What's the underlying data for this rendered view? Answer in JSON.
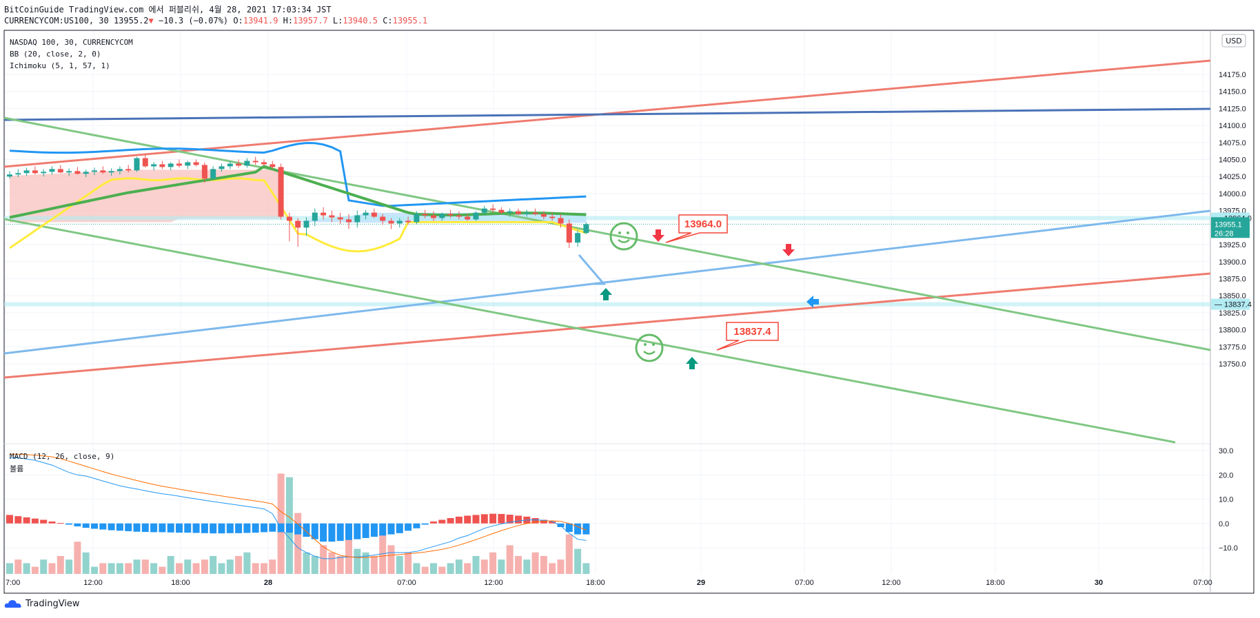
{
  "header": {
    "line1": "BitCoinGuide TradingView.com 에서 퍼블리쉬, 4월 28, 2021 17:03:34 JST",
    "symbol_line": "CURRENCYCOM:US100, 30",
    "last": "13955.2",
    "change_arrow": "▼",
    "change": "−10.3 (−0.07%)",
    "o_label": "O:",
    "o": "13941.9",
    "h_label": "H:",
    "h": "13957.7",
    "l_label": "L:",
    "l": "13940.5",
    "c_label": "C:",
    "c": "13955.1"
  },
  "legend": {
    "symbol": "NASDAQ 100, 30, CURRENCYCOM",
    "bb": "BB (20, close, 2, 0)",
    "ichimoku": "Ichimoku (5, 1, 57, 1)",
    "macd": "MACD (12, 26, close, 9)",
    "volume": "볼륨"
  },
  "currency_badge": "USD",
  "price_tag": {
    "value": "13955.1",
    "countdown": "26:28"
  },
  "footer": {
    "brand": "TradingView"
  },
  "colors": {
    "up": "#26a69a",
    "down": "#ef5350",
    "bb": "#2196f3",
    "tenkan": "#ffeb3b",
    "kijun": "#4caf50",
    "red_line": "#ef7b6f",
    "blue_line": "#7eb9ec",
    "green_line": "#7fc783",
    "navy_line": "#4a72b7"
  },
  "chart_data": [
    {
      "type": "candlestick",
      "title": "NASDAQ 100, 30, CURRENCYCOM",
      "ylim": [
        13720,
        14205
      ],
      "y_ticks": [
        "14175.0",
        "14150.0",
        "14125.0",
        "14100.0",
        "14075.0",
        "14050.0",
        "14025.0",
        "14000.0",
        "13975.0",
        "13925.0",
        "13900.0",
        "13875.0",
        "13850.0",
        "13825.0",
        "13800.0",
        "13775.0",
        "13750.0"
      ],
      "x_ticks": [
        "7:00",
        "12:00",
        "18:00",
        "28",
        "07:00",
        "12:00",
        "18:00",
        "29",
        "07:00",
        "12:00",
        "18:00",
        "30",
        "07:00"
      ],
      "candles": [
        [
          14025,
          14033,
          14022,
          14028
        ],
        [
          14028,
          14036,
          14024,
          14030
        ],
        [
          14030,
          14038,
          14026,
          14034
        ],
        [
          14034,
          14040,
          14028,
          14030
        ],
        [
          14030,
          14036,
          14025,
          14032
        ],
        [
          14032,
          14040,
          14028,
          14036
        ],
        [
          14036,
          14042,
          14030,
          14031
        ],
        [
          14031,
          14037,
          14026,
          14033
        ],
        [
          14033,
          14039,
          14028,
          14029
        ],
        [
          14029,
          14035,
          14024,
          14032
        ],
        [
          14032,
          14038,
          14027,
          14034
        ],
        [
          14034,
          14040,
          14029,
          14031
        ],
        [
          14031,
          14037,
          14026,
          14033
        ],
        [
          14033,
          14040,
          14028,
          14036
        ],
        [
          14036,
          14042,
          14031,
          14034
        ],
        [
          14034,
          14054,
          14032,
          14052
        ],
        [
          14052,
          14058,
          14038,
          14040
        ],
        [
          14040,
          14046,
          14034,
          14043
        ],
        [
          14043,
          14048,
          14036,
          14039
        ],
        [
          14039,
          14046,
          14034,
          14044
        ],
        [
          14044,
          14050,
          14038,
          14041
        ],
        [
          14041,
          14048,
          14036,
          14046
        ],
        [
          14046,
          14050,
          14040,
          14042
        ],
        [
          14042,
          14046,
          14016,
          14022
        ],
        [
          14022,
          14040,
          14020,
          14036
        ],
        [
          14036,
          14044,
          14032,
          14040
        ],
        [
          14040,
          14048,
          14036,
          14044
        ],
        [
          14044,
          14050,
          14038,
          14041
        ],
        [
          14041,
          14052,
          14038,
          14048
        ],
        [
          14048,
          14054,
          14042,
          14046
        ],
        [
          14046,
          14050,
          14040,
          14043
        ],
        [
          14043,
          14048,
          14036,
          14039
        ],
        [
          14039,
          14044,
          13962,
          13966
        ],
        [
          13966,
          13972,
          13930,
          13960
        ],
        [
          13960,
          13964,
          13922,
          13950
        ],
        [
          13950,
          13965,
          13938,
          13960
        ],
        [
          13960,
          13978,
          13952,
          13972
        ],
        [
          13972,
          13980,
          13962,
          13968
        ],
        [
          13968,
          13975,
          13958,
          13965
        ],
        [
          13965,
          13972,
          13955,
          13962
        ],
        [
          13962,
          13970,
          13948,
          13958
        ],
        [
          13958,
          13975,
          13950,
          13968
        ],
        [
          13968,
          13976,
          13962,
          13972
        ],
        [
          13972,
          13978,
          13964,
          13966
        ],
        [
          13966,
          13970,
          13954,
          13960
        ],
        [
          13960,
          13964,
          13948,
          13956
        ],
        [
          13956,
          13964,
          13950,
          13960
        ],
        [
          13960,
          13966,
          13954,
          13958
        ],
        [
          13958,
          13974,
          13955,
          13970
        ],
        [
          13970,
          13976,
          13964,
          13968
        ],
        [
          13968,
          13974,
          13960,
          13964
        ],
        [
          13964,
          13972,
          13960,
          13970
        ],
        [
          13970,
          13976,
          13964,
          13968
        ],
        [
          13968,
          13974,
          13962,
          13966
        ],
        [
          13966,
          13970,
          13960,
          13962
        ],
        [
          13962,
          13974,
          13960,
          13972
        ],
        [
          13972,
          13982,
          13968,
          13978
        ],
        [
          13978,
          13984,
          13972,
          13976
        ],
        [
          13976,
          13980,
          13970,
          13972
        ],
        [
          13972,
          13978,
          13966,
          13974
        ],
        [
          13974,
          13978,
          13968,
          13970
        ],
        [
          13970,
          13976,
          13966,
          13972
        ],
        [
          13972,
          13978,
          13968,
          13970
        ],
        [
          13970,
          13974,
          13962,
          13966
        ],
        [
          13966,
          13972,
          13960,
          13964
        ],
        [
          13964,
          13970,
          13950,
          13956
        ],
        [
          13956,
          13962,
          13920,
          13928
        ],
        [
          13928,
          13946,
          13922,
          13942
        ],
        [
          13942,
          13957.7,
          13940.5,
          13955.1
        ]
      ]
    },
    {
      "type": "bar",
      "title": "MACD (12, 26, close, 9)",
      "ylim": [
        -22,
        35
      ],
      "y_ticks": [
        "30.0",
        "20.0",
        "10.0",
        "0.0",
        "−10.0"
      ],
      "histogram": [
        3.5,
        3,
        2.5,
        2,
        1.5,
        0.8,
        0.2,
        -0.5,
        -1.2,
        -1.8,
        -2.2,
        -2.5,
        -2.8,
        -3,
        -3.2,
        -3.4,
        -3.5,
        -3.6,
        -3.6,
        -3.7,
        -3.8,
        -3.8,
        -3.9,
        -4,
        -4.1,
        -4.1,
        -4,
        -4,
        -3.9,
        -3.8,
        -3.6,
        -3.4,
        -3.6,
        -3.8,
        -4.5,
        -5.5,
        -6.5,
        -7.5,
        -7.5,
        -7.2,
        -6.8,
        -6.5,
        -6,
        -5.5,
        -5,
        -4.5,
        -4,
        -3,
        -2,
        -0.5,
        0.8,
        1.5,
        2.2,
        2.8,
        3.2,
        3.5,
        3.8,
        4,
        3.9,
        3.6,
        3.2,
        2.8,
        2.2,
        1.5,
        0.8,
        -1.5,
        -3.5,
        -4.5,
        -4.5
      ],
      "volume": [
        3,
        4,
        3,
        2,
        4,
        3,
        5,
        4,
        9,
        6,
        2,
        3,
        3,
        3,
        3,
        4,
        4,
        3,
        2,
        5,
        3,
        4,
        3,
        4,
        5,
        3,
        4,
        5,
        6,
        3,
        3,
        4,
        28,
        27,
        17,
        6,
        5,
        8,
        6,
        5,
        10,
        7,
        6,
        5,
        12,
        8,
        5,
        6,
        3,
        2,
        3,
        2,
        3,
        4,
        3,
        5,
        4,
        6,
        4,
        8,
        5,
        4,
        6,
        5,
        3,
        4,
        11,
        7,
        3
      ],
      "volume_up": [
        true,
        false,
        true,
        false,
        true,
        false,
        false,
        true,
        false,
        true,
        true,
        false,
        true,
        true,
        false,
        true,
        false,
        true,
        false,
        true,
        false,
        true,
        false,
        false,
        true,
        true,
        true,
        false,
        true,
        false,
        false,
        false,
        false,
        true,
        false,
        true,
        true,
        false,
        false,
        false,
        false,
        true,
        true,
        false,
        false,
        false,
        true,
        false,
        true,
        false,
        true,
        false,
        true,
        true,
        false,
        true,
        false,
        false,
        true,
        false,
        false,
        true,
        false,
        false,
        false,
        false,
        false,
        true,
        true
      ],
      "macd_line": [
        27,
        27,
        26.5,
        26,
        25,
        24,
        22.5,
        21,
        20,
        19.5,
        18.5,
        17.5,
        16.5,
        15.5,
        14.8,
        14.2,
        13.5,
        12.8,
        12.2,
        11.8,
        11.2,
        10.6,
        10.1,
        9.5,
        9,
        8.5,
        8,
        7.5,
        7,
        6.5,
        6,
        4,
        -2,
        -6,
        -10,
        -12,
        -13.5,
        -14.5,
        -14.5,
        -14,
        -13.8,
        -13.8,
        -13.5,
        -13,
        -12.5,
        -12,
        -12,
        -12,
        -11.5,
        -10.5,
        -9.5,
        -8.5,
        -7.5,
        -6,
        -5,
        -3.5,
        -2,
        -1,
        -0.2,
        0.5,
        1,
        1.4,
        1.5,
        1.3,
        0.8,
        -1,
        -4,
        -6.5,
        -7
      ]
    }
  ]
}
